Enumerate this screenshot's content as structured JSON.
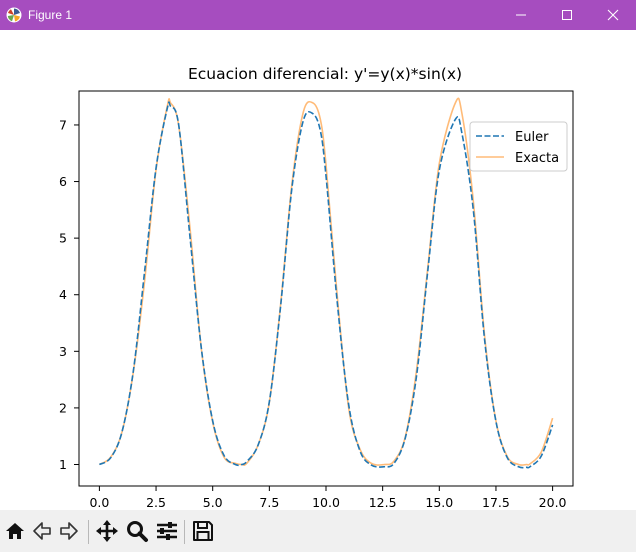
{
  "window": {
    "title": "Figure 1"
  },
  "toolbar": {
    "buttons": [
      {
        "name": "home-icon",
        "tooltip": "Home"
      },
      {
        "name": "back-icon",
        "tooltip": "Back"
      },
      {
        "name": "forward-icon",
        "tooltip": "Forward"
      },
      {
        "name": "pan-icon",
        "tooltip": "Pan"
      },
      {
        "name": "zoom-icon",
        "tooltip": "Zoom"
      },
      {
        "name": "configure-subplots-icon",
        "tooltip": "Subplots"
      },
      {
        "name": "save-icon",
        "tooltip": "Save"
      }
    ]
  },
  "colors": {
    "titlebar": "#a64dbf",
    "euler": "#1f77b4",
    "exacta": "#ffbb78"
  },
  "chart_data": {
    "type": "line",
    "title": "Ecuacion diferencial: y'=y(x)*sin(x)",
    "xlabel": "",
    "ylabel": "",
    "xlim": [
      -0.9,
      20.9
    ],
    "ylim": [
      0.62,
      7.6
    ],
    "xticks": [
      0.0,
      2.5,
      5.0,
      7.5,
      10.0,
      12.5,
      15.0,
      17.5,
      20.0
    ],
    "xtick_labels": [
      "0.0",
      "2.5",
      "5.0",
      "7.5",
      "10.0",
      "12.5",
      "15.0",
      "17.5",
      "20.0"
    ],
    "yticks": [
      1,
      2,
      3,
      4,
      5,
      6,
      7
    ],
    "ytick_labels": [
      "1",
      "2",
      "3",
      "4",
      "5",
      "6",
      "7"
    ],
    "grid": false,
    "legend_position": "top-right",
    "series": [
      {
        "name": "Euler",
        "style": "dashed",
        "color": "#1f77b4",
        "x": [
          0.0,
          0.5,
          1.0,
          1.5,
          2.0,
          2.5,
          3.0,
          3.14,
          3.5,
          4.0,
          4.5,
          5.0,
          5.5,
          6.0,
          6.28,
          6.5,
          7.0,
          7.5,
          8.0,
          8.5,
          9.0,
          9.42,
          9.75,
          10.0,
          10.5,
          11.0,
          11.5,
          12.0,
          12.57,
          13.0,
          13.5,
          14.0,
          14.5,
          15.0,
          15.71,
          16.0,
          16.5,
          17.0,
          17.5,
          18.0,
          18.5,
          18.85,
          19.0,
          19.5,
          20.0
        ],
        "y": [
          1.0,
          1.12,
          1.58,
          2.66,
          4.43,
          6.24,
          7.3,
          7.33,
          7.0,
          5.01,
          3.05,
          1.77,
          1.16,
          1.0,
          1.0,
          1.05,
          1.34,
          2.11,
          3.81,
          5.9,
          7.08,
          7.2,
          6.9,
          6.1,
          3.85,
          2.06,
          1.24,
          0.99,
          0.96,
          1.02,
          1.47,
          2.58,
          4.45,
          6.2,
          7.1,
          6.85,
          5.5,
          3.2,
          1.76,
          1.12,
          0.96,
          0.95,
          0.96,
          1.15,
          1.7
        ]
      },
      {
        "name": "Exacta",
        "style": "solid",
        "color": "#ffbb78",
        "x": [
          0.0,
          0.5,
          1.0,
          1.5,
          2.0,
          2.5,
          3.0,
          3.14,
          3.5,
          4.0,
          4.5,
          5.0,
          5.5,
          6.0,
          6.28,
          6.5,
          7.0,
          7.5,
          8.0,
          8.5,
          9.0,
          9.42,
          9.75,
          10.0,
          10.5,
          11.0,
          11.5,
          12.0,
          12.57,
          13.0,
          13.5,
          14.0,
          14.5,
          15.0,
          15.71,
          16.0,
          16.5,
          17.0,
          17.5,
          18.0,
          18.5,
          18.85,
          19.0,
          19.5,
          20.0
        ],
        "y": [
          1.0,
          1.13,
          1.58,
          2.64,
          4.26,
          6.21,
          7.34,
          7.39,
          6.99,
          5.17,
          3.04,
          1.75,
          1.13,
          1.02,
          1.0,
          1.02,
          1.34,
          2.1,
          3.84,
          5.97,
          7.23,
          7.39,
          7.1,
          6.3,
          3.96,
          2.0,
          1.27,
          1.02,
          1.0,
          1.06,
          1.49,
          2.68,
          4.51,
          6.32,
          7.39,
          7.2,
          5.66,
          3.27,
          1.77,
          1.14,
          1.0,
          1.0,
          1.01,
          1.22,
          1.82
        ]
      }
    ]
  }
}
